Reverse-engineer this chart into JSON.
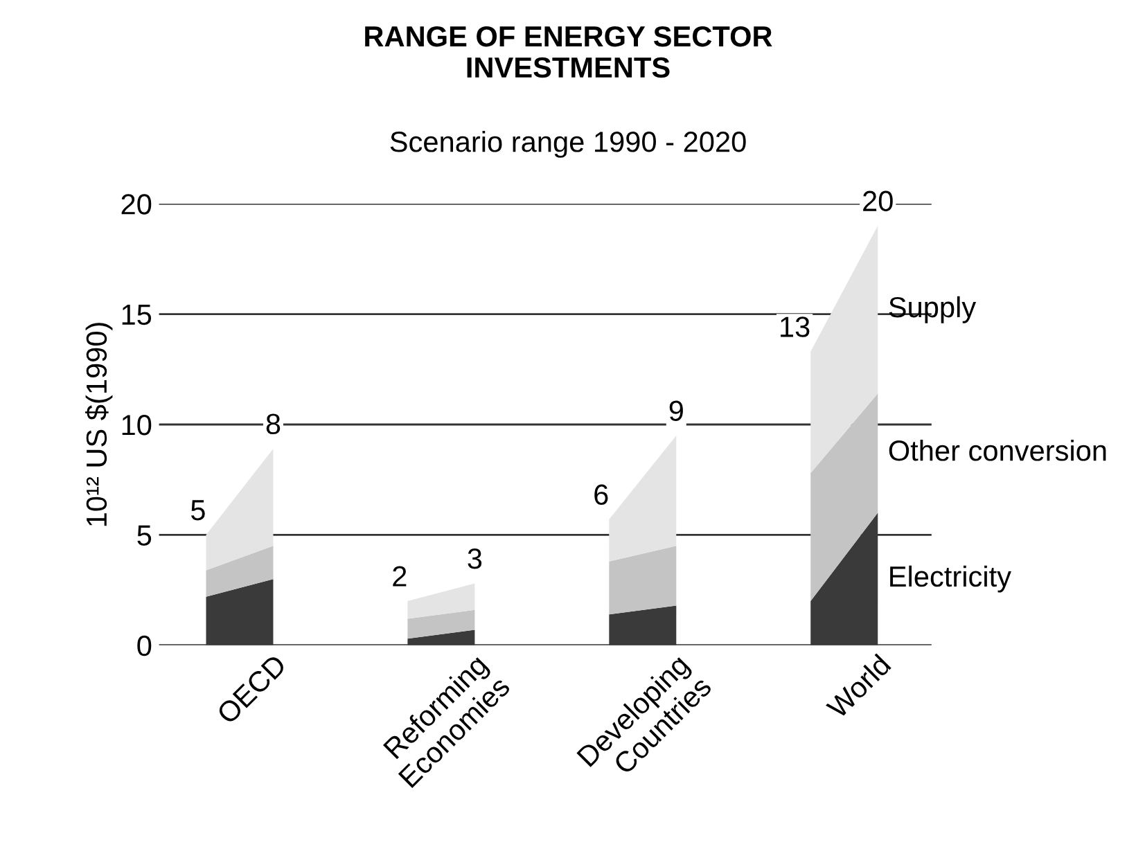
{
  "chart_data": {
    "type": "area",
    "stacked": true,
    "title": "RANGE OF ENERGY SECTOR\nINVESTMENTS",
    "subtitle": "Scenario range 1990 - 2020",
    "ylabel": "10¹² US $(1990)",
    "categories": [
      null,
      "OECD",
      null,
      null,
      "Reforming Economies",
      null,
      null,
      "Developing Countries",
      null,
      null,
      "World"
    ],
    "series": [
      {
        "name": "Electricity",
        "color": "#3a3a3a",
        "values": [
          2.2,
          3.0,
          null,
          0.3,
          0.7,
          null,
          1.4,
          1.8,
          null,
          2.0,
          6.0
        ]
      },
      {
        "name": "Other conversion",
        "color": "#c4c4c4",
        "values": [
          1.2,
          1.5,
          null,
          0.9,
          0.9,
          null,
          2.4,
          2.7,
          null,
          5.8,
          5.4
        ]
      },
      {
        "name": "Supply",
        "color": "#e4e4e4",
        "values": [
          1.6,
          4.4,
          null,
          0.8,
          1.2,
          null,
          1.9,
          5.0,
          null,
          5.5,
          7.6
        ]
      }
    ],
    "totals": [
      "5",
      "8",
      null,
      "2",
      "3",
      null,
      "6",
      "9",
      null,
      "13",
      "20"
    ],
    "ylim": [
      0,
      20
    ],
    "yticks": [
      0,
      5,
      10,
      15,
      20
    ],
    "grid": "y",
    "legend": false
  }
}
